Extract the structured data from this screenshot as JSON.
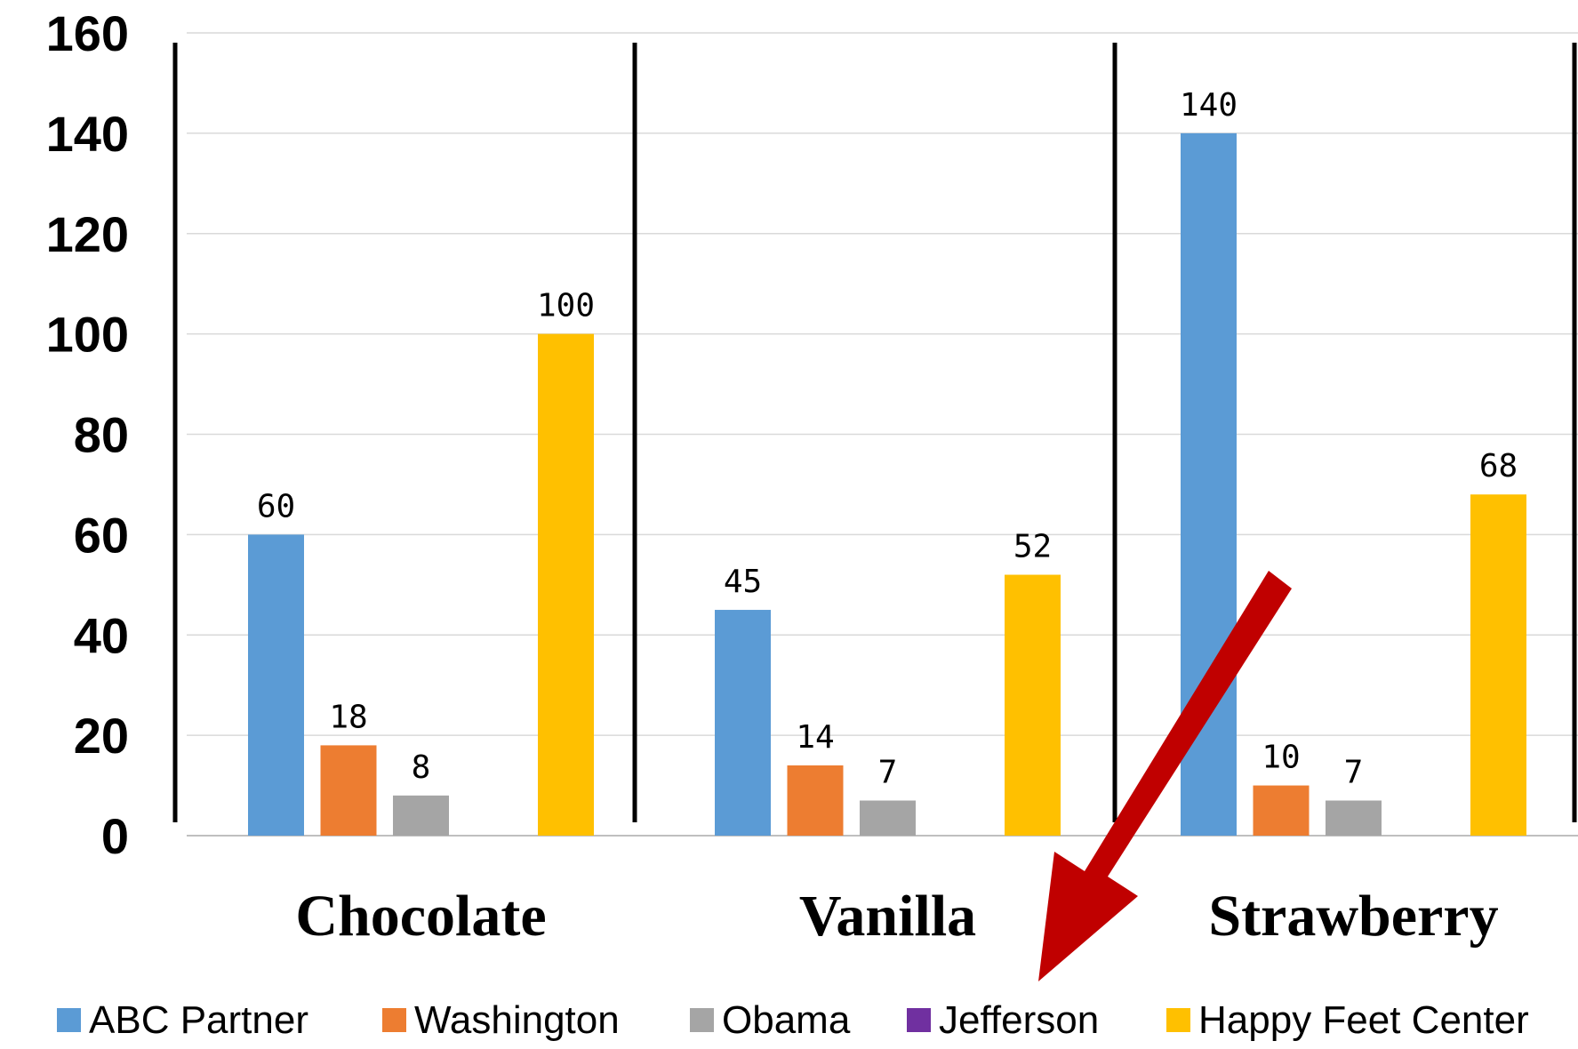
{
  "chart_data": {
    "type": "bar",
    "title": "",
    "xlabel": "",
    "ylabel": "",
    "ylim": [
      0,
      160
    ],
    "yticks": [
      0,
      20,
      40,
      60,
      80,
      100,
      120,
      140,
      160
    ],
    "grid": true,
    "legend_position": "bottom",
    "categories": [
      "Chocolate",
      "Vanilla",
      "Strawberry"
    ],
    "series": [
      {
        "name": "ABC Partner",
        "color": "#5b9bd5",
        "values": [
          60,
          45,
          140
        ]
      },
      {
        "name": "Washington",
        "color": "#ed7d31",
        "values": [
          18,
          14,
          10
        ]
      },
      {
        "name": "Obama",
        "color": "#a5a5a5",
        "values": [
          8,
          7,
          7
        ]
      },
      {
        "name": "Jefferson",
        "color": "#7030a0",
        "values": [
          null,
          null,
          null
        ]
      },
      {
        "name": "Happy Feet Center",
        "color": "#ffc000",
        "values": [
          100,
          52,
          68
        ]
      }
    ],
    "annotation": {
      "type": "arrow",
      "color": "#c00000",
      "points_to": "Jefferson"
    }
  }
}
